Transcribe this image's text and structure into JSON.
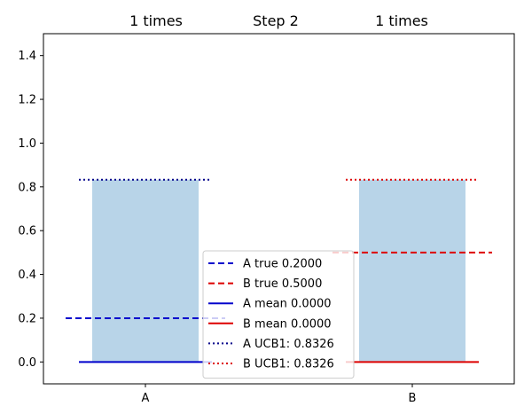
{
  "chart_data": {
    "type": "bar",
    "title": "Step 2",
    "categories": [
      "A",
      "B"
    ],
    "ylim": [
      -0.1,
      1.5
    ],
    "yticks": [
      "0.0",
      "0.2",
      "0.4",
      "0.6",
      "0.8",
      "1.0",
      "1.2",
      "1.4"
    ],
    "grid": false,
    "legend_position": "bottom-center",
    "bar_color": "#b8d4e8",
    "bars": [
      {
        "category": "A",
        "value": 0.8326,
        "count_label": "1 times",
        "color": "#0000cc"
      },
      {
        "category": "B",
        "value": 0.8326,
        "count_label": "1 times",
        "color": "#dd0000"
      }
    ],
    "series": [
      {
        "name": "A true 0.2000",
        "arm": "A",
        "kind": "true",
        "value": 0.2,
        "style": "dashed",
        "color": "#0000cc"
      },
      {
        "name": "B true 0.5000",
        "arm": "B",
        "kind": "true",
        "value": 0.5,
        "style": "dashed",
        "color": "#dd0000"
      },
      {
        "name": "A mean 0.0000",
        "arm": "A",
        "kind": "mean",
        "value": 0.0,
        "style": "solid",
        "color": "#0000cc"
      },
      {
        "name": "B mean 0.0000",
        "arm": "B",
        "kind": "mean",
        "value": 0.0,
        "style": "solid",
        "color": "#dd0000"
      },
      {
        "name": "A UCB1: 0.8326",
        "arm": "A",
        "kind": "ucb",
        "value": 0.8326,
        "style": "dotted",
        "color": "#00008b"
      },
      {
        "name": "B UCB1: 0.8326",
        "arm": "B",
        "kind": "ucb",
        "value": 0.8326,
        "style": "dotted",
        "color": "#dd0000"
      }
    ]
  }
}
